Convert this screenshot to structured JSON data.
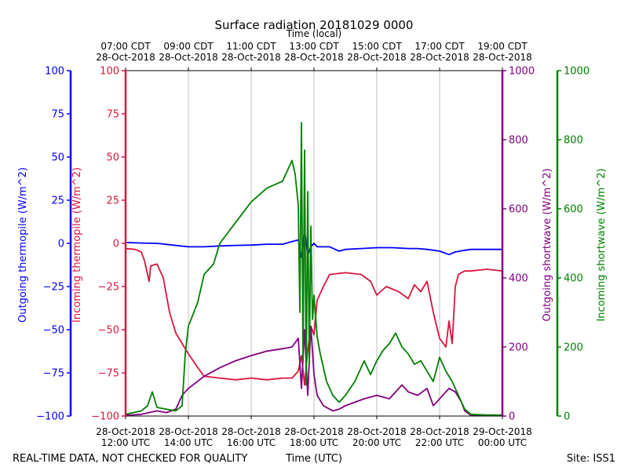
{
  "chart_data": {
    "type": "line",
    "title": "Surface radiation 20181029 0000",
    "top_axis_label": "Time (local)",
    "xlabel": "Time (UTC)",
    "footer_left": "REAL-TIME DATA, NOT CHECKED FOR QUALITY",
    "footer_right": "Site: ISS1",
    "x_range_hours_utc": [
      12,
      24
    ],
    "bottom_ticks": [
      {
        "hour": 12,
        "line1": "28-Oct-2018",
        "line2": "12:00 UTC"
      },
      {
        "hour": 14,
        "line1": "28-Oct-2018",
        "line2": "14:00 UTC"
      },
      {
        "hour": 16,
        "line1": "28-Oct-2018",
        "line2": "16:00 UTC"
      },
      {
        "hour": 18,
        "line1": "28-Oct-2018",
        "line2": "18:00 UTC"
      },
      {
        "hour": 20,
        "line1": "28-Oct-2018",
        "line2": "20:00 UTC"
      },
      {
        "hour": 22,
        "line1": "28-Oct-2018",
        "line2": "22:00 UTC"
      },
      {
        "hour": 24,
        "line1": "29-Oct-2018",
        "line2": "00:00 UTC"
      }
    ],
    "top_ticks": [
      {
        "hour": 12,
        "line1": "07:00 CDT",
        "line2": "28-Oct-2018"
      },
      {
        "hour": 14,
        "line1": "09:00 CDT",
        "line2": "28-Oct-2018"
      },
      {
        "hour": 16,
        "line1": "11:00 CDT",
        "line2": "28-Oct-2018"
      },
      {
        "hour": 18,
        "line1": "13:00 CDT",
        "line2": "28-Oct-2018"
      },
      {
        "hour": 20,
        "line1": "15:00 CDT",
        "line2": "28-Oct-2018"
      },
      {
        "hour": 22,
        "line1": "17:00 CDT",
        "line2": "28-Oct-2018"
      },
      {
        "hour": 24,
        "line1": "19:00 CDT",
        "line2": "28-Oct-2018"
      }
    ],
    "grid": "vertical",
    "axes": {
      "outgoing_thermopile": {
        "label": "Outgoing thermopile (W/m^2)",
        "color": "#0000ff",
        "ylim": [
          -100,
          100
        ],
        "ticks": [
          -100,
          -75,
          -50,
          -25,
          0,
          25,
          50,
          75,
          100
        ],
        "side": "left-outer"
      },
      "incoming_thermopile": {
        "label": "Incoming thermopile (W/m^2)",
        "color": "#dc143c",
        "ylim": [
          -100,
          100
        ],
        "ticks": [
          -100,
          -75,
          -50,
          -25,
          0,
          25,
          50,
          75,
          100
        ],
        "side": "left-inner"
      },
      "outgoing_shortwave": {
        "label": "Outgoing shortwave (W/m^2)",
        "color": "#800080",
        "ylim": [
          0,
          1000
        ],
        "ticks": [
          0,
          200,
          400,
          600,
          800,
          1000
        ],
        "side": "right-inner"
      },
      "incoming_shortwave": {
        "label": "Incoming shortwave (W/m^2)",
        "color": "#008000",
        "ylim": [
          0,
          1000
        ],
        "ticks": [
          0,
          200,
          400,
          600,
          800,
          1000
        ],
        "side": "right-outer"
      }
    },
    "series": [
      {
        "axis": "outgoing_thermopile",
        "color": "#0000ff",
        "x": [
          12.0,
          12.5,
          13.0,
          13.5,
          14.0,
          14.5,
          15.0,
          15.5,
          16.0,
          16.5,
          17.0,
          17.3,
          17.5,
          17.6,
          17.7,
          17.8,
          17.9,
          18.0,
          18.1,
          18.3,
          18.5,
          18.8,
          19.0,
          19.5,
          20.0,
          20.5,
          21.0,
          21.3,
          21.6,
          22.0,
          22.3,
          22.5,
          22.8,
          23.0,
          23.5,
          24.0
        ],
        "y": [
          0.5,
          0.2,
          0.0,
          -1.0,
          -2.0,
          -2.0,
          -1.5,
          -1.2,
          -1.0,
          -0.5,
          -0.5,
          1.0,
          2.0,
          -8.0,
          8.0,
          -7.0,
          -2.0,
          0.0,
          -2.0,
          -2.0,
          -2.0,
          -4.5,
          -3.5,
          -3.0,
          -2.5,
          -2.5,
          -3.0,
          -3.0,
          -3.5,
          -4.5,
          -6.5,
          -5.0,
          -4.0,
          -3.5,
          -3.5,
          -3.5
        ]
      },
      {
        "axis": "incoming_thermopile",
        "color": "#dc143c",
        "x": [
          12.0,
          12.3,
          12.5,
          12.6,
          12.75,
          12.8,
          13.0,
          13.2,
          13.4,
          13.6,
          13.8,
          14.0,
          14.3,
          14.5,
          15.0,
          15.5,
          16.0,
          16.5,
          17.0,
          17.3,
          17.5,
          17.6,
          17.7,
          17.8,
          17.9,
          18.0,
          18.1,
          18.3,
          18.5,
          19.0,
          19.5,
          19.8,
          20.0,
          20.3,
          20.7,
          21.0,
          21.2,
          21.4,
          21.6,
          21.8,
          22.0,
          22.2,
          22.3,
          22.4,
          22.5,
          22.6,
          22.8,
          23.0,
          23.5,
          24.0
        ],
        "y": [
          -3,
          -3.5,
          -5,
          -10,
          -22,
          -13,
          -12,
          -20,
          -40,
          -52,
          -58,
          -64,
          -72,
          -77,
          -78,
          -79,
          -78,
          -79,
          -78,
          -78,
          -74,
          -65,
          -82,
          -62,
          -48,
          -53,
          -33,
          -25,
          -18,
          -17,
          -18,
          -22,
          -30,
          -25,
          -28,
          -32,
          -24,
          -28,
          -22,
          -40,
          -55,
          -60,
          -45,
          -58,
          -25,
          -18,
          -16,
          -16,
          -15,
          -16
        ]
      },
      {
        "axis": "outgoing_shortwave",
        "color": "#800080",
        "x": [
          12.0,
          12.5,
          13.0,
          13.3,
          13.6,
          13.8,
          14.0,
          14.5,
          15.0,
          15.5,
          16.0,
          16.5,
          17.0,
          17.3,
          17.5,
          17.6,
          17.7,
          17.8,
          17.9,
          18.0,
          18.1,
          18.3,
          18.6,
          18.8,
          19.0,
          19.3,
          19.6,
          20.0,
          20.4,
          20.8,
          21.0,
          21.3,
          21.6,
          21.8,
          22.0,
          22.3,
          22.5,
          22.7,
          22.8,
          23.0,
          23.5,
          24.0
        ],
        "y": [
          2,
          5,
          15,
          10,
          20,
          60,
          80,
          115,
          140,
          160,
          175,
          188,
          195,
          200,
          225,
          80,
          250,
          60,
          260,
          120,
          60,
          30,
          15,
          20,
          30,
          40,
          50,
          60,
          50,
          90,
          70,
          60,
          80,
          30,
          50,
          80,
          70,
          40,
          15,
          2,
          2,
          2
        ]
      },
      {
        "axis": "incoming_shortwave",
        "color": "#008000",
        "x": [
          12.0,
          12.5,
          12.7,
          12.85,
          13.0,
          13.3,
          13.6,
          13.8,
          13.9,
          14.0,
          14.3,
          14.5,
          14.8,
          15.0,
          15.5,
          16.0,
          16.5,
          17.0,
          17.3,
          17.4,
          17.5,
          17.55,
          17.6,
          17.65,
          17.7,
          17.75,
          17.8,
          17.85,
          17.9,
          17.95,
          18.0,
          18.1,
          18.2,
          18.4,
          18.6,
          18.8,
          19.0,
          19.3,
          19.6,
          19.8,
          20.0,
          20.2,
          20.4,
          20.6,
          20.8,
          21.0,
          21.2,
          21.4,
          21.6,
          21.8,
          22.0,
          22.2,
          22.4,
          22.6,
          22.8,
          23.0,
          23.5,
          24.0
        ],
        "y": [
          5,
          15,
          30,
          70,
          25,
          20,
          15,
          30,
          180,
          260,
          330,
          410,
          440,
          500,
          560,
          620,
          660,
          680,
          740,
          700,
          610,
          300,
          850,
          160,
          770,
          90,
          650,
          150,
          550,
          280,
          350,
          230,
          180,
          100,
          60,
          40,
          60,
          100,
          160,
          120,
          160,
          190,
          210,
          240,
          200,
          180,
          150,
          160,
          130,
          100,
          170,
          130,
          100,
          60,
          20,
          5,
          3,
          3
        ]
      }
    ]
  }
}
